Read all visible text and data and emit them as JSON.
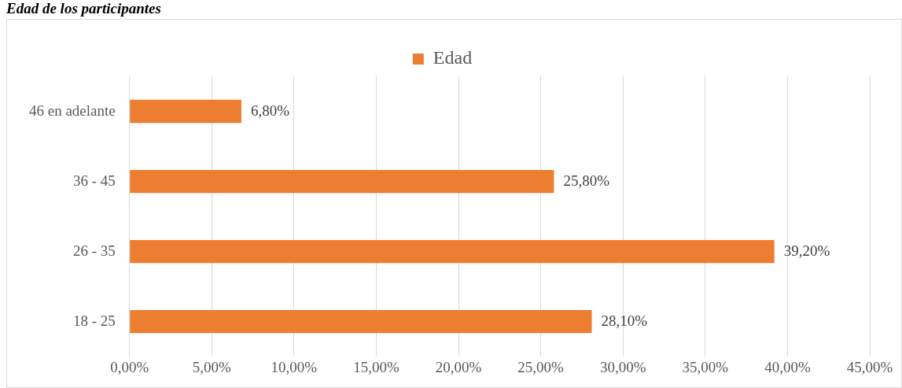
{
  "chart_data": {
    "type": "bar",
    "title": "Edad de los participantes",
    "orientation": "horizontal",
    "categories": [
      "46 en adelante",
      "36 - 45",
      "26 - 35",
      "18 - 25"
    ],
    "series": [
      {
        "name": "Edad",
        "color": "#ed7d31",
        "values": [
          6.8,
          25.8,
          39.2,
          28.1
        ],
        "value_labels": [
          "6,80%",
          "25,80%",
          "39,20%",
          "28,10%"
        ]
      }
    ],
    "xlim": [
      0,
      45
    ],
    "xticks": [
      {
        "value": 0,
        "label": "0,00%"
      },
      {
        "value": 5,
        "label": "5,00%"
      },
      {
        "value": 10,
        "label": "10,00%"
      },
      {
        "value": 15,
        "label": "15,00%"
      },
      {
        "value": 20,
        "label": "20,00%"
      },
      {
        "value": 25,
        "label": "25,00%"
      },
      {
        "value": 30,
        "label": "30,00%"
      },
      {
        "value": 35,
        "label": "35,00%"
      },
      {
        "value": 40,
        "label": "40,00%"
      },
      {
        "value": 45,
        "label": "45,00%"
      }
    ],
    "grid": "x",
    "legend": "top"
  }
}
